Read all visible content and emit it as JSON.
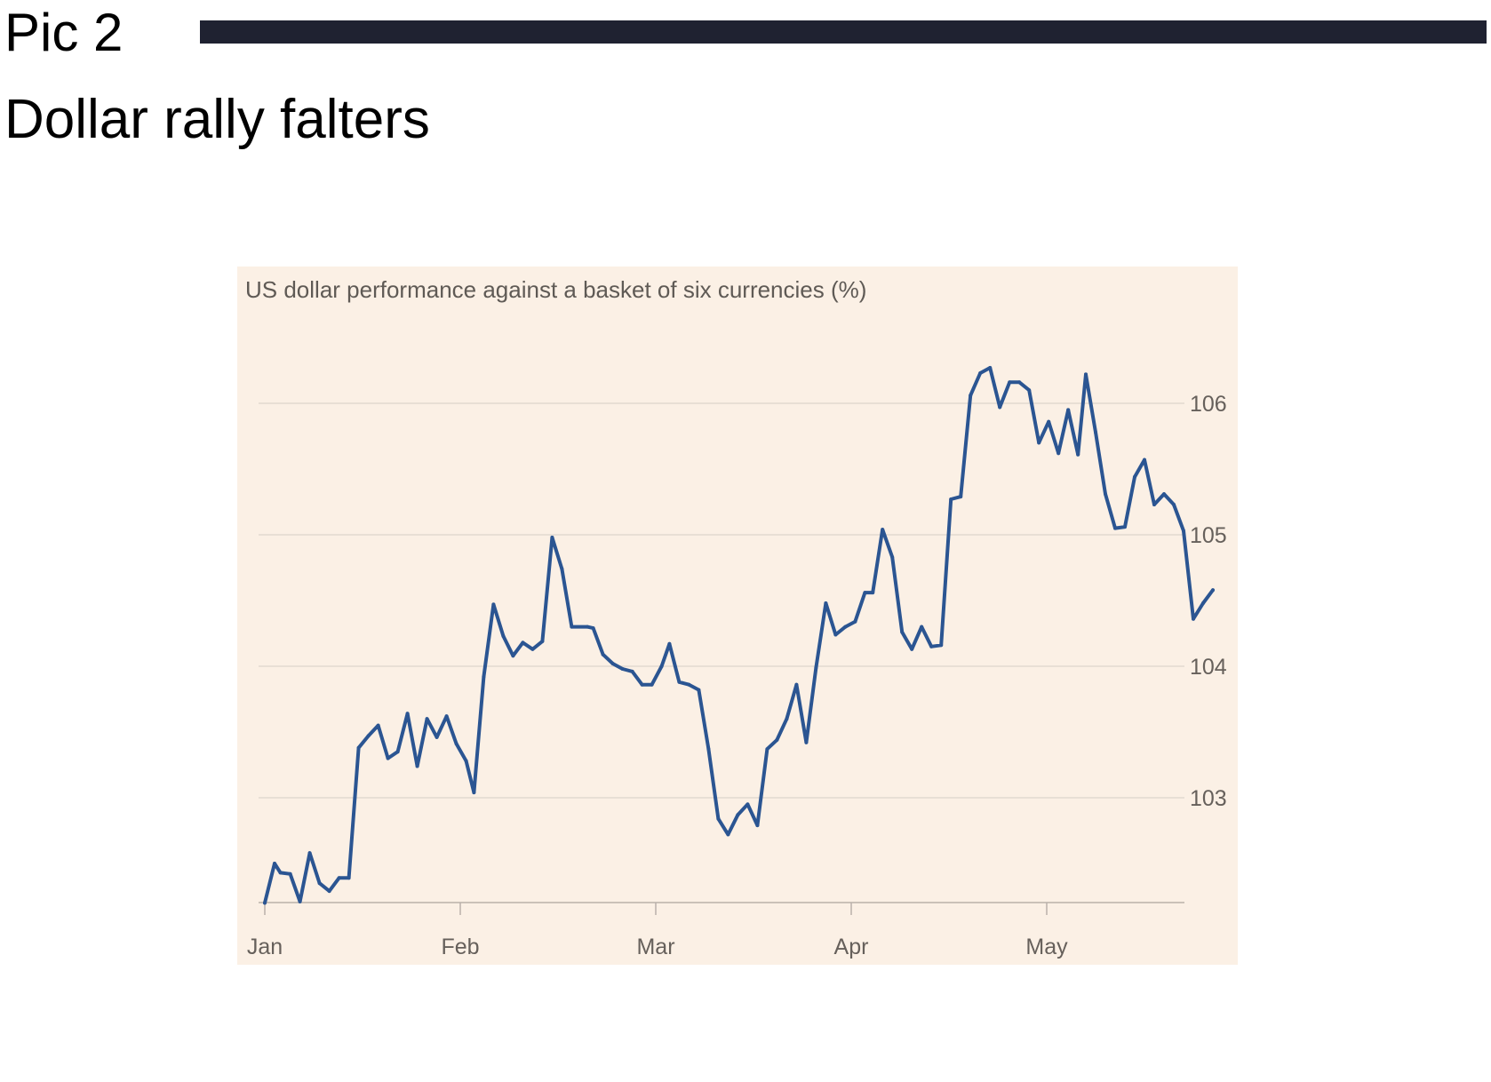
{
  "page": {
    "pic_label": "Pic 2",
    "headline": "Dollar rally falters",
    "rule_color": "#1f2231"
  },
  "chart_data": {
    "type": "line",
    "title": "US dollar performance against a basket of six currencies (%)",
    "xlabel": "",
    "ylabel": "",
    "x_ticks": [
      "Jan",
      "Feb",
      "Mar",
      "Apr",
      "May"
    ],
    "y_ticks": [
      103,
      104,
      105,
      106
    ],
    "ylim": [
      102.2,
      106.4
    ],
    "y_axis_position": "right",
    "grid": "horizontal",
    "background": "#fbf0e5",
    "line_color": "#2b5592",
    "series": [
      {
        "values": [
          [
            1.0,
            102.2
          ],
          [
            1.05,
            102.5
          ],
          [
            1.08,
            102.43
          ],
          [
            1.13,
            102.42
          ],
          [
            1.18,
            102.21
          ],
          [
            1.23,
            102.58
          ],
          [
            1.28,
            102.35
          ],
          [
            1.33,
            102.29
          ],
          [
            1.38,
            102.39
          ],
          [
            1.43,
            102.39
          ],
          [
            1.48,
            103.38
          ],
          [
            1.53,
            103.47
          ],
          [
            1.58,
            103.55
          ],
          [
            1.63,
            103.3
          ],
          [
            1.68,
            103.35
          ],
          [
            1.73,
            103.64
          ],
          [
            1.78,
            103.24
          ],
          [
            1.83,
            103.6
          ],
          [
            1.88,
            103.46
          ],
          [
            1.93,
            103.62
          ],
          [
            1.98,
            103.41
          ],
          [
            2.03,
            103.28
          ],
          [
            2.07,
            103.04
          ],
          [
            2.12,
            103.92
          ],
          [
            2.17,
            104.47
          ],
          [
            2.22,
            104.23
          ],
          [
            2.27,
            104.08
          ],
          [
            2.32,
            104.18
          ],
          [
            2.37,
            104.13
          ],
          [
            2.42,
            104.19
          ],
          [
            2.47,
            104.98
          ],
          [
            2.52,
            104.74
          ],
          [
            2.57,
            104.3
          ],
          [
            2.65,
            104.3
          ],
          [
            2.68,
            104.29
          ],
          [
            2.73,
            104.09
          ],
          [
            2.78,
            104.02
          ],
          [
            2.83,
            103.98
          ],
          [
            2.88,
            103.96
          ],
          [
            2.93,
            103.86
          ],
          [
            2.98,
            103.86
          ],
          [
            3.03,
            104.0
          ],
          [
            3.07,
            104.17
          ],
          [
            3.12,
            103.88
          ],
          [
            3.17,
            103.86
          ],
          [
            3.22,
            103.82
          ],
          [
            3.27,
            103.37
          ],
          [
            3.32,
            102.84
          ],
          [
            3.37,
            102.72
          ],
          [
            3.42,
            102.87
          ],
          [
            3.47,
            102.95
          ],
          [
            3.52,
            102.79
          ],
          [
            3.57,
            103.37
          ],
          [
            3.62,
            103.44
          ],
          [
            3.67,
            103.6
          ],
          [
            3.72,
            103.86
          ],
          [
            3.77,
            103.42
          ],
          [
            3.82,
            103.99
          ],
          [
            3.87,
            104.48
          ],
          [
            3.92,
            104.24
          ],
          [
            3.97,
            104.3
          ],
          [
            4.02,
            104.34
          ],
          [
            4.07,
            104.56
          ],
          [
            4.11,
            104.56
          ],
          [
            4.16,
            105.04
          ],
          [
            4.21,
            104.83
          ],
          [
            4.26,
            104.26
          ],
          [
            4.31,
            104.13
          ],
          [
            4.36,
            104.3
          ],
          [
            4.41,
            104.15
          ],
          [
            4.46,
            104.16
          ],
          [
            4.51,
            105.27
          ],
          [
            4.56,
            105.29
          ],
          [
            4.61,
            106.06
          ],
          [
            4.66,
            106.23
          ],
          [
            4.71,
            106.27
          ],
          [
            4.76,
            105.97
          ],
          [
            4.81,
            106.16
          ],
          [
            4.86,
            106.16
          ],
          [
            4.91,
            106.1
          ],
          [
            4.96,
            105.7
          ],
          [
            5.01,
            105.86
          ],
          [
            5.06,
            105.62
          ],
          [
            5.11,
            105.95
          ],
          [
            5.16,
            105.61
          ],
          [
            5.2,
            106.22
          ],
          [
            5.25,
            105.78
          ],
          [
            5.3,
            105.31
          ],
          [
            5.35,
            105.05
          ],
          [
            5.4,
            105.06
          ],
          [
            5.45,
            105.44
          ],
          [
            5.5,
            105.57
          ],
          [
            5.55,
            105.23
          ],
          [
            5.6,
            105.31
          ],
          [
            5.65,
            105.23
          ],
          [
            5.7,
            105.03
          ],
          [
            5.75,
            104.36
          ],
          [
            5.8,
            104.48
          ],
          [
            5.85,
            104.58
          ]
        ]
      }
    ]
  }
}
